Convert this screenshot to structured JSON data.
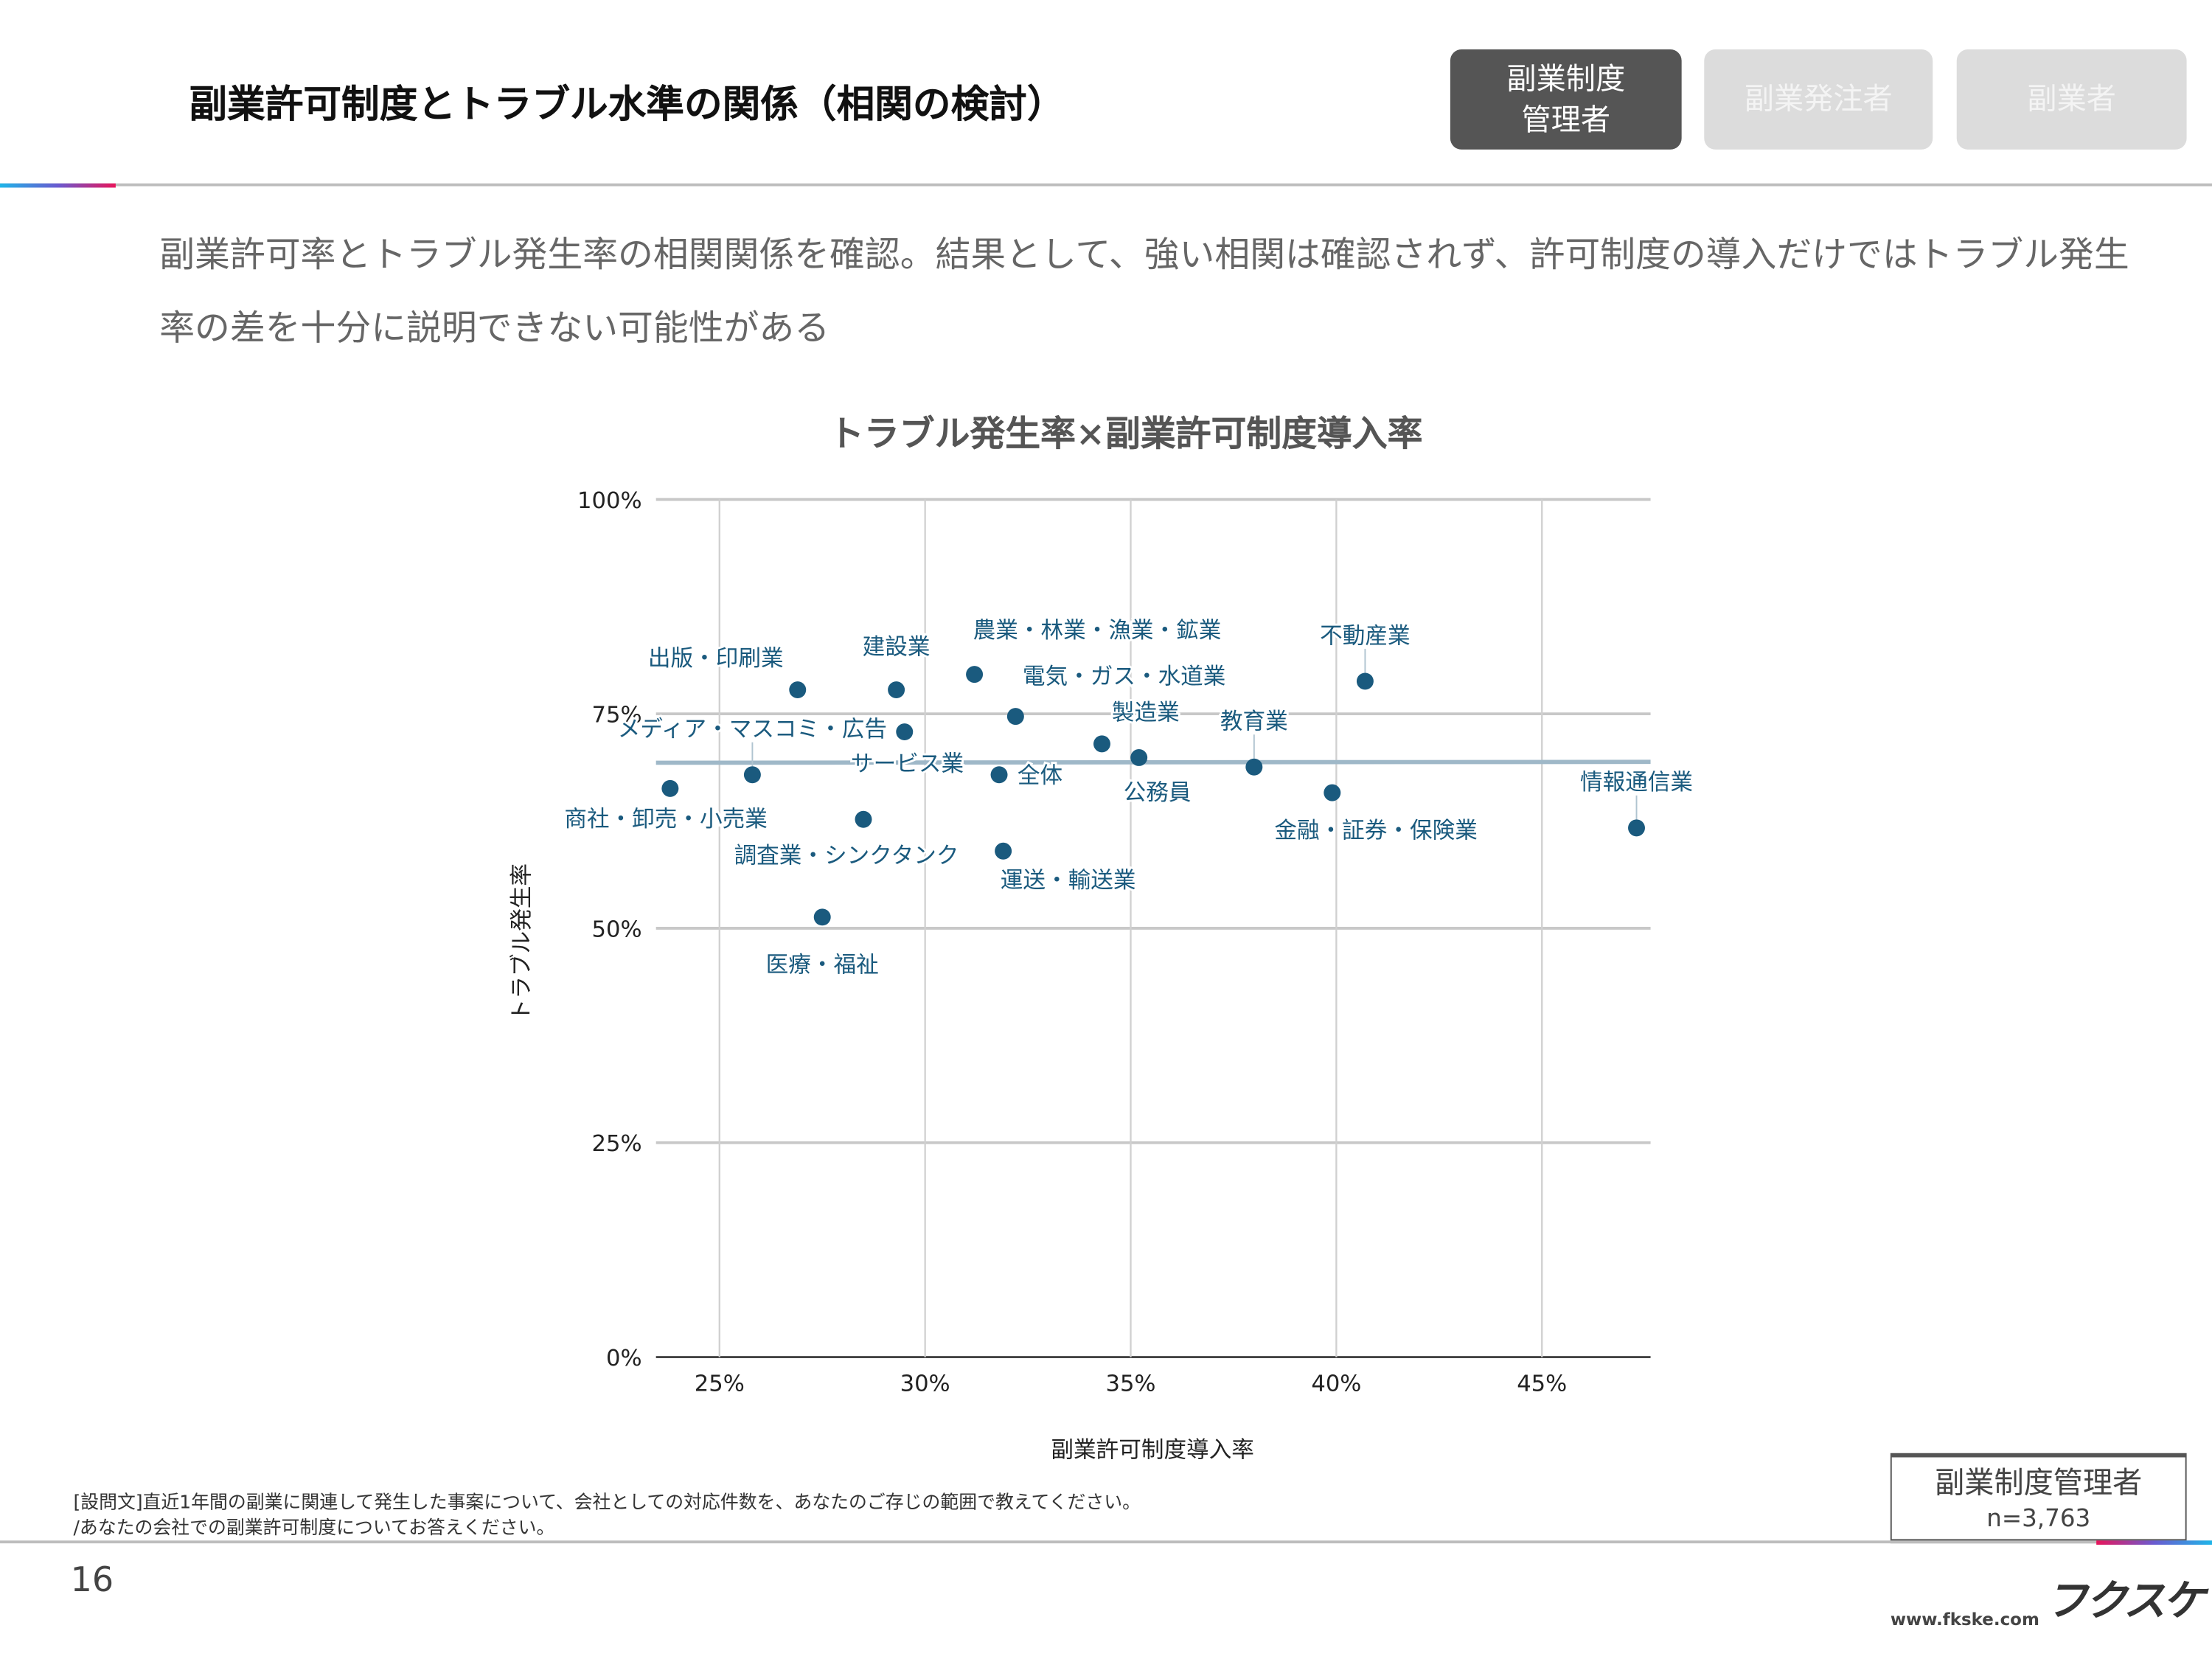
{
  "header": {
    "title": "副業許可制度とトラブル水準の関係（相関の検討）",
    "tabs": [
      {
        "line1": "副業制度",
        "line2": "管理者",
        "active": true
      },
      {
        "label": "副業発注者",
        "active": false
      },
      {
        "label": "副業者",
        "active": false
      }
    ]
  },
  "lead": "副業許可率とトラブル発生率の相関関係を確認。結果として、強い相関は確認されず、許可制度の導入だけではトラブル発生率の差を十分に説明できない可能性がある",
  "chart_data": {
    "type": "scatter",
    "title": "トラブル発生率×副業許可制度導入率",
    "xlabel": "副業許可制度導入率",
    "ylabel": "トラブル発生率",
    "xlim": [
      23.5,
      47.7
    ],
    "ylim": [
      0,
      100
    ],
    "x_ticks": [
      "25%",
      "30%",
      "35%",
      "40%",
      "45%"
    ],
    "x_tick_values": [
      25,
      30,
      35,
      40,
      45
    ],
    "y_ticks": [
      "0%",
      "25%",
      "50%",
      "75%",
      "100%"
    ],
    "y_tick_values": [
      0,
      25,
      50,
      75,
      100
    ],
    "grid": true,
    "trendline": {
      "y_at_xmin": 69.3,
      "y_at_xmax": 69.4,
      "color": "#9fb8c8"
    },
    "point_color": "#1a5a7e",
    "points": [
      {
        "label": "商社・卸売・小売業",
        "x": 23.8,
        "y": 66.3
      },
      {
        "label": "メディア・マスコミ・広告",
        "x": 25.8,
        "y": 67.9
      },
      {
        "label": "出版・印刷業",
        "x": 26.9,
        "y": 77.8
      },
      {
        "label": "医療・福祉",
        "x": 27.5,
        "y": 51.3
      },
      {
        "label": "調査業・シンクタンク",
        "x": 28.5,
        "y": 62.7
      },
      {
        "label": "建設業",
        "x": 29.3,
        "y": 77.8
      },
      {
        "label": "サービス業",
        "x": 29.5,
        "y": 72.9
      },
      {
        "label": "農業・林業・漁業・鉱業",
        "x": 31.2,
        "y": 79.6
      },
      {
        "label": "全体",
        "x": 31.8,
        "y": 67.9
      },
      {
        "label": "運送・輸送業",
        "x": 31.9,
        "y": 59.0
      },
      {
        "label": "電気・ガス・水道業",
        "x": 32.2,
        "y": 74.7
      },
      {
        "label": "製造業",
        "x": 34.3,
        "y": 71.5
      },
      {
        "label": "公務員",
        "x": 35.2,
        "y": 69.9
      },
      {
        "label": "教育業",
        "x": 38.0,
        "y": 68.8
      },
      {
        "label": "金融・証券・保険業",
        "x": 39.9,
        "y": 65.8
      },
      {
        "label": "不動産業",
        "x": 40.7,
        "y": 78.8
      },
      {
        "label": "情報通信業",
        "x": 47.3,
        "y": 61.7
      }
    ]
  },
  "footer": {
    "note_line1": "[設問文]直近1年間の副業に関連して発生した事案について、会社としての対応件数を、あなたのご存じの範囲で教えてください。",
    "note_line2": "/あなたの会社での副業許可制度についてお答えください。",
    "sample_title": "副業制度管理者",
    "sample_n": "n=3,763",
    "page_number": "16",
    "logo": "フクスケ",
    "url": "www.fkske.com"
  }
}
